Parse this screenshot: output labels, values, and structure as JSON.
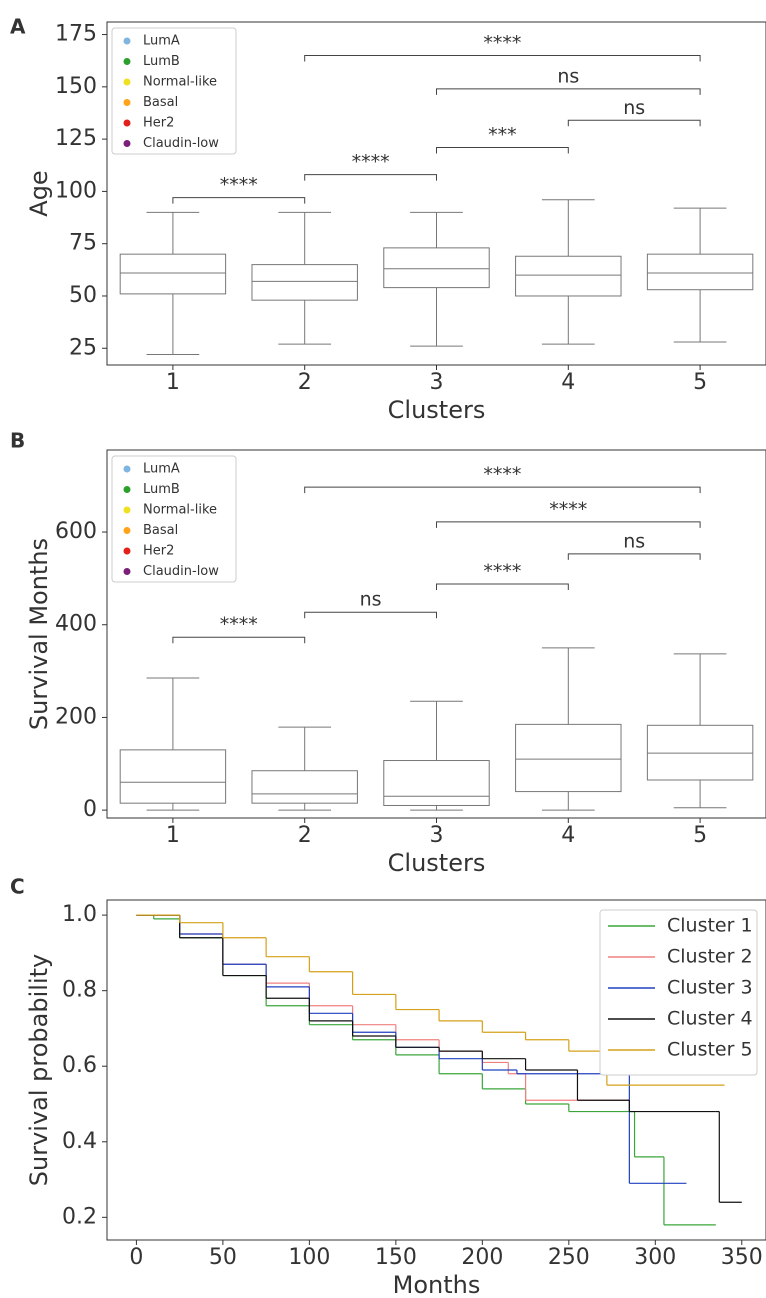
{
  "chart_data": [
    {
      "type": "box",
      "panel_label": "A",
      "x_label": "Clusters",
      "y_label": "Age",
      "categories": [
        "1",
        "2",
        "3",
        "4",
        "5"
      ],
      "boxes": [
        {
          "min": 22,
          "q1": 51,
          "median": 61,
          "q3": 70,
          "max": 90
        },
        {
          "min": 27,
          "q1": 48,
          "median": 57,
          "q3": 65,
          "max": 90
        },
        {
          "min": 26,
          "q1": 54,
          "median": 63,
          "q3": 73,
          "max": 90
        },
        {
          "min": 27,
          "q1": 50,
          "median": 60,
          "q3": 69,
          "max": 96
        },
        {
          "min": 28,
          "q1": 53,
          "median": 61,
          "q3": 70,
          "max": 92
        }
      ],
      "ylim": [
        17,
        181
      ],
      "yticks": [
        25,
        50,
        75,
        100,
        125,
        150,
        175
      ],
      "annotations": [
        {
          "from": "1",
          "to": "2",
          "y": 97,
          "label": "****"
        },
        {
          "from": "2",
          "to": "3",
          "y": 108,
          "label": "****"
        },
        {
          "from": "3",
          "to": "4",
          "y": 121,
          "label": "***"
        },
        {
          "from": "4",
          "to": "5",
          "y": 134,
          "label": "ns"
        },
        {
          "from": "3",
          "to": "5",
          "y": 149,
          "label": "ns"
        },
        {
          "from": "2",
          "to": "5",
          "y": 165,
          "label": "****"
        }
      ],
      "legend": [
        {
          "name": "LumA",
          "color": "#7fb5e0"
        },
        {
          "name": "LumB",
          "color": "#2ca02c"
        },
        {
          "name": "Normal-like",
          "color": "#f0e020"
        },
        {
          "name": "Basal",
          "color": "#ffa31a"
        },
        {
          "name": "Her2",
          "color": "#e3201b"
        },
        {
          "name": "Claudin-low",
          "color": "#7b1f7b"
        }
      ],
      "legend_position": "upper left"
    },
    {
      "type": "box",
      "panel_label": "B",
      "x_label": "Clusters",
      "y_label": "Survival Months",
      "categories": [
        "1",
        "2",
        "3",
        "4",
        "5"
      ],
      "boxes": [
        {
          "min": 0,
          "q1": 15,
          "median": 60,
          "q3": 130,
          "max": 285
        },
        {
          "min": 0,
          "q1": 15,
          "median": 35,
          "q3": 85,
          "max": 179
        },
        {
          "min": 0,
          "q1": 10,
          "median": 30,
          "q3": 107,
          "max": 235
        },
        {
          "min": 0,
          "q1": 40,
          "median": 110,
          "q3": 185,
          "max": 350
        },
        {
          "min": 5,
          "q1": 65,
          "median": 123,
          "q3": 183,
          "max": 337
        }
      ],
      "ylim": [
        -17,
        777
      ],
      "yticks": [
        0,
        200,
        400,
        600
      ],
      "annotations": [
        {
          "from": "1",
          "to": "2",
          "y": 373,
          "label": "****"
        },
        {
          "from": "2",
          "to": "3",
          "y": 427,
          "label": "ns"
        },
        {
          "from": "3",
          "to": "4",
          "y": 488,
          "label": "****"
        },
        {
          "from": "4",
          "to": "5",
          "y": 553,
          "label": "ns"
        },
        {
          "from": "3",
          "to": "5",
          "y": 622,
          "label": "****"
        },
        {
          "from": "2",
          "to": "5",
          "y": 697,
          "label": "****"
        }
      ],
      "legend": [
        {
          "name": "LumA",
          "color": "#7fb5e0"
        },
        {
          "name": "LumB",
          "color": "#2ca02c"
        },
        {
          "name": "Normal-like",
          "color": "#f0e020"
        },
        {
          "name": "Basal",
          "color": "#ffa31a"
        },
        {
          "name": "Her2",
          "color": "#e3201b"
        },
        {
          "name": "Claudin-low",
          "color": "#7b1f7b"
        }
      ],
      "legend_position": "upper left"
    },
    {
      "type": "step",
      "panel_label": "C",
      "x_label": "Months",
      "y_label": "Survival probability",
      "xlim": [
        -17,
        364
      ],
      "xticks": [
        0,
        50,
        100,
        150,
        200,
        250,
        300,
        350
      ],
      "ylim": [
        0.14,
        1.04
      ],
      "yticks": [
        0.2,
        0.4,
        0.6,
        0.8,
        {
          "value": 1,
          "label": "1.0"
        }
      ],
      "legend_position": "upper right",
      "series": [
        {
          "name": "Cluster 1",
          "color": "#3aa63a",
          "x": [
            0,
            10,
            25,
            50,
            75,
            100,
            125,
            150,
            175,
            200,
            225,
            250,
            285,
            288,
            305,
            335
          ],
          "values": [
            1,
            0.99,
            0.94,
            0.84,
            0.76,
            0.71,
            0.67,
            0.63,
            0.58,
            0.54,
            0.5,
            0.48,
            0.48,
            0.36,
            0.18,
            0.18
          ]
        },
        {
          "name": "Cluster 2",
          "color": "#f08080",
          "x": [
            0,
            25,
            50,
            75,
            100,
            125,
            150,
            175,
            200,
            215,
            225,
            285
          ],
          "values": [
            1,
            0.95,
            0.87,
            0.82,
            0.76,
            0.71,
            0.67,
            0.64,
            0.61,
            0.58,
            0.51,
            0.51
          ]
        },
        {
          "name": "Cluster 3",
          "color": "#2040c0",
          "x": [
            0,
            25,
            50,
            75,
            100,
            125,
            150,
            175,
            200,
            220,
            283,
            285,
            318
          ],
          "values": [
            1,
            0.95,
            0.87,
            0.81,
            0.74,
            0.69,
            0.65,
            0.62,
            0.59,
            0.58,
            0.58,
            0.29,
            0.29
          ]
        },
        {
          "name": "Cluster 4",
          "color": "#111111",
          "x": [
            0,
            25,
            50,
            75,
            100,
            125,
            150,
            175,
            200,
            225,
            255,
            285,
            335,
            337,
            350
          ],
          "values": [
            1,
            0.94,
            0.84,
            0.78,
            0.72,
            0.68,
            0.65,
            0.64,
            0.62,
            0.59,
            0.51,
            0.48,
            0.48,
            0.24,
            0.24
          ]
        },
        {
          "name": "Cluster 5",
          "color": "#d4a017",
          "x": [
            0,
            25,
            50,
            75,
            100,
            125,
            150,
            175,
            200,
            225,
            250,
            270,
            272,
            340
          ],
          "values": [
            1,
            0.98,
            0.94,
            0.89,
            0.85,
            0.79,
            0.75,
            0.72,
            0.69,
            0.67,
            0.64,
            0.62,
            0.55,
            0.55
          ]
        }
      ]
    }
  ]
}
